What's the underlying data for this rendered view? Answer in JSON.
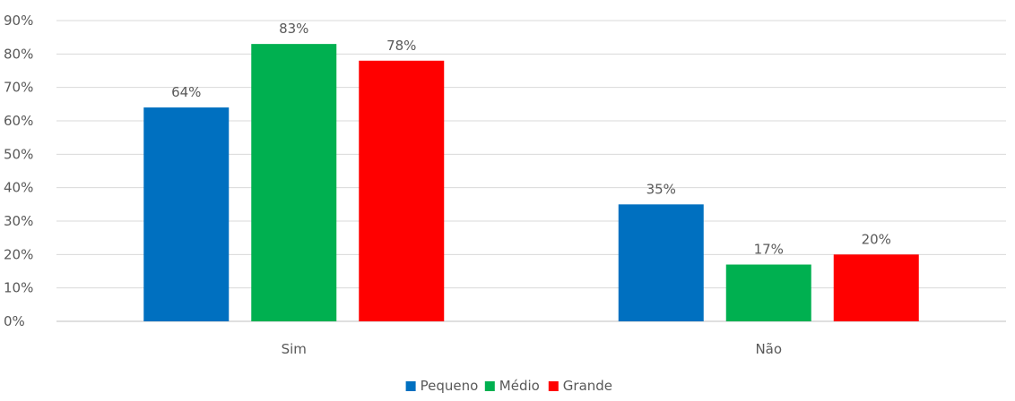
{
  "chart_data": {
    "type": "bar",
    "categories": [
      "Sim",
      "Não"
    ],
    "series": [
      {
        "name": "Pequeno",
        "color": "#0070C0",
        "values": [
          64,
          35
        ],
        "labels": [
          "64%",
          "35%"
        ]
      },
      {
        "name": "Médio",
        "color": "#00B050",
        "values": [
          83,
          17
        ],
        "labels": [
          "83%",
          "17%"
        ]
      },
      {
        "name": "Grande",
        "color": "#FF0000",
        "values": [
          78,
          20
        ],
        "labels": [
          "78%",
          "20%"
        ]
      }
    ],
    "ylim": [
      0,
      90
    ],
    "yticks": [
      "0%",
      "10%",
      "20%",
      "30%",
      "40%",
      "50%",
      "60%",
      "70%",
      "80%",
      "90%"
    ],
    "grid": true,
    "legend_position": "bottom"
  }
}
